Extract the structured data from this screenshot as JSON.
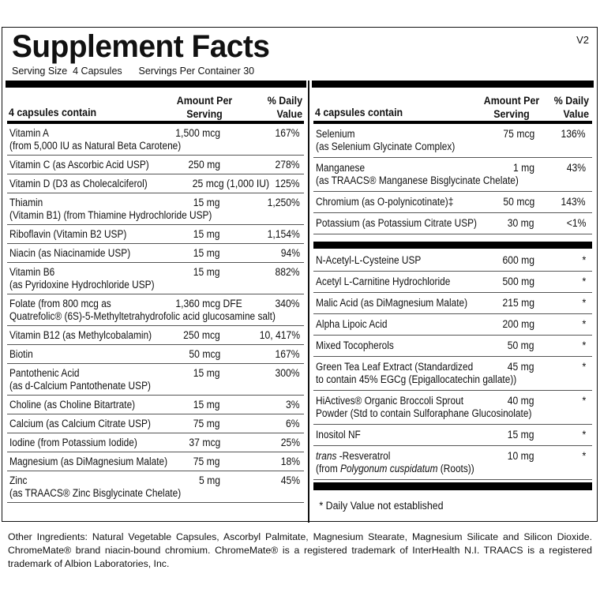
{
  "header": {
    "title": "Supplement Facts",
    "version": "V2",
    "serving_size": "Serving Size  4 Capsules",
    "servings_per_container": "Servings Per Container 30"
  },
  "columns": {
    "name": "4 capsules contain",
    "amount": "Amount Per Serving",
    "dv": "% Daily Value"
  },
  "left_rows": [
    {
      "lines": [
        "Vitamin A",
        "(from 5,000 IU as Natural Beta Carotene)"
      ],
      "amount": "1,500 mcg",
      "dv": "167%"
    },
    {
      "lines": [
        "Vitamin C (as Ascorbic Acid USP)"
      ],
      "amount": "250 mg",
      "dv": "278%"
    },
    {
      "lines": [
        "Vitamin D (D3 as Cholecalciferol)"
      ],
      "amount": "25 mcg (1,000 IU)",
      "dv": "125%"
    },
    {
      "lines": [
        "Thiamin",
        "(Vitamin B1) (from Thiamine Hydrochloride USP)"
      ],
      "amount": "15 mg",
      "dv": "1,250%"
    },
    {
      "lines": [
        "Riboflavin (Vitamin B2 USP)"
      ],
      "amount": "15 mg",
      "dv": "1,154%"
    },
    {
      "lines": [
        "Niacin (as Niacinamide USP)"
      ],
      "amount": "15 mg",
      "dv": "94%"
    },
    {
      "lines": [
        "Vitamin B6",
        "(as Pyridoxine Hydrochloride USP)"
      ],
      "amount": "15 mg",
      "dv": "882%"
    },
    {
      "lines": [
        "Folate (from 800 mcg as",
        "Quatrefolic® (6S)-5-Methyltetrahydrofolic acid glucosamine salt)"
      ],
      "amount": "1,360 mcg DFE",
      "dv": "340%"
    },
    {
      "lines": [
        "Vitamin B12 (as Methylcobalamin)"
      ],
      "amount": "250 mcg",
      "dv": "10, 417%"
    },
    {
      "lines": [
        "Biotin"
      ],
      "amount": "50 mcg",
      "dv": "167%"
    },
    {
      "lines": [
        "Pantothenic Acid",
        "(as d-Calcium Pantothenate USP)"
      ],
      "amount": "15 mg",
      "dv": "300%"
    },
    {
      "lines": [
        "Choline (as Choline Bitartrate)"
      ],
      "amount": "15 mg",
      "dv": "3%"
    },
    {
      "lines": [
        "Calcium (as Calcium Citrate USP)"
      ],
      "amount": "75 mg",
      "dv": "6%"
    },
    {
      "lines": [
        "Iodine (from Potassium Iodide)"
      ],
      "amount": "37 mcg",
      "dv": "25%"
    },
    {
      "lines": [
        "Magnesium (as DiMagnesium Malate)"
      ],
      "amount": "75 mg",
      "dv": "18%"
    },
    {
      "lines": [
        "Zinc",
        "(as TRAACS® Zinc Bisglycinate Chelate)"
      ],
      "amount": "5 mg",
      "dv": "45%"
    }
  ],
  "right_rows_minerals": [
    {
      "lines": [
        "Selenium",
        "(as Selenium Glycinate Complex)"
      ],
      "amount": "75 mcg",
      "dv": "136%"
    },
    {
      "lines": [
        "Manganese",
        "(as TRAACS® Manganese Bisglycinate Chelate)"
      ],
      "amount": "1 mg",
      "dv": "43%"
    },
    {
      "lines": [
        "Chromium (as O-polynicotinate)‡"
      ],
      "amount": "50 mcg",
      "dv": "143%"
    },
    {
      "lines": [
        "Potassium (as Potassium Citrate USP)"
      ],
      "amount": "30 mg",
      "dv": "<1%"
    }
  ],
  "right_rows_other": [
    {
      "lines": [
        "N-Acetyl-L-Cysteine USP"
      ],
      "amount": "600 mg",
      "dv": "*"
    },
    {
      "lines": [
        "Acetyl L-Carnitine Hydrochloride"
      ],
      "amount": "500 mg",
      "dv": "*"
    },
    {
      "lines": [
        "Malic Acid (as DiMagnesium Malate)"
      ],
      "amount": "215 mg",
      "dv": "*"
    },
    {
      "lines": [
        "Alpha Lipoic Acid"
      ],
      "amount": "200 mg",
      "dv": "*"
    },
    {
      "lines": [
        "Mixed Tocopherols"
      ],
      "amount": "50 mg",
      "dv": "*"
    },
    {
      "lines": [
        "Green Tea Leaf Extract  (Standardized",
        "to contain 45% EGCg (Epigallocatechin gallate))"
      ],
      "amount": "45 mg",
      "dv": "*"
    },
    {
      "lines": [
        "HiActives® Organic Broccoli Sprout",
        "Powder  (Std to contain Sulforaphane Glucosinolate)"
      ],
      "amount": "40 mg",
      "dv": "*"
    },
    {
      "lines": [
        "Inositol NF"
      ],
      "amount": "15 mg",
      "dv": "*"
    },
    {
      "lines": [
        [
          [
            "trans",
            true
          ],
          [
            " -Resveratrol",
            false
          ]
        ],
        [
          [
            "(from ",
            false
          ],
          [
            "Polygonum cuspidatum",
            true
          ],
          [
            " (Roots))",
            false
          ]
        ]
      ],
      "amount": "10 mg",
      "dv": "*"
    }
  ],
  "footnote": "*  Daily Value not established",
  "other_ingredients": [
    "Other Ingredients: Natural Vegetable Capsules, Ascorbyl Palmitate, Magnesium Stearate, Magnesium Silicate and Silicon Dioxide.",
    "ChromeMate® brand niacin-bound chromium. ChromeMate® is a registered trademark of InterHealth N.I. TRAACS is a registered",
    "trademark of Albion Laboratories, Inc."
  ]
}
